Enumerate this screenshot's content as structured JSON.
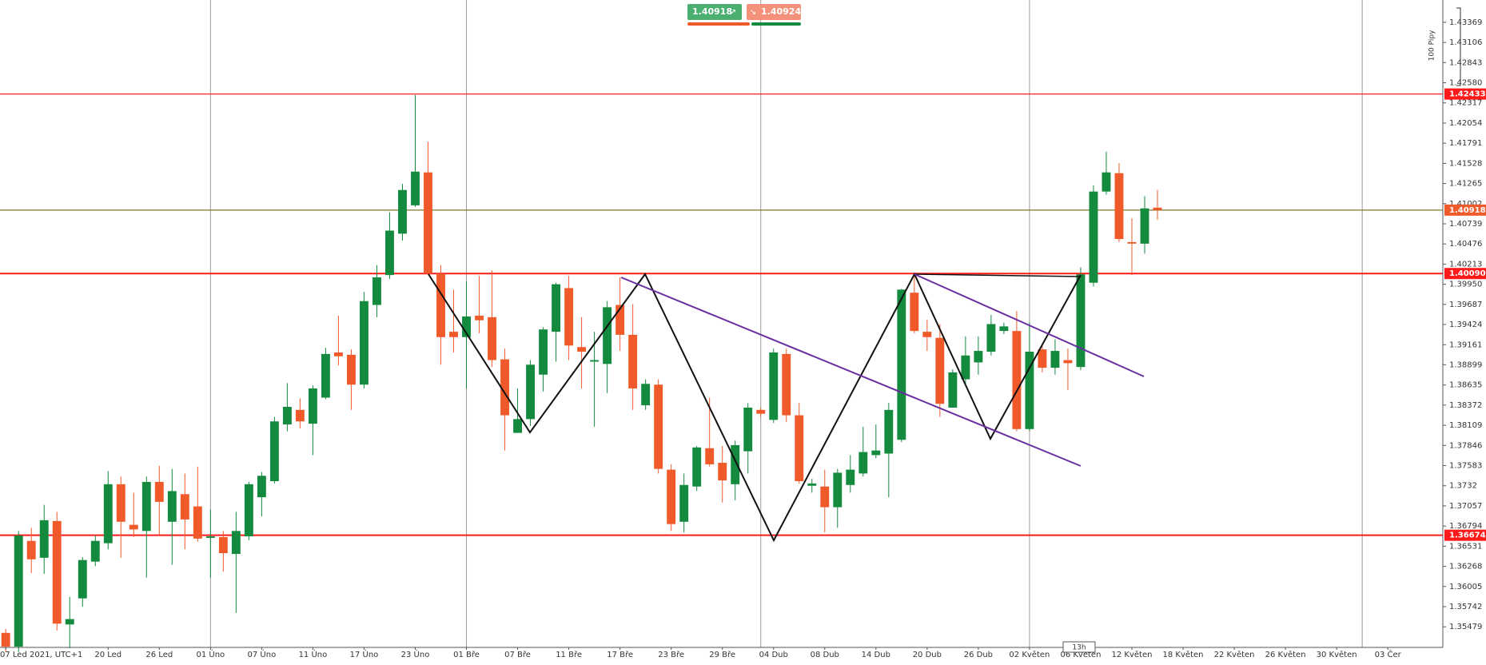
{
  "chart_data": {
    "type": "candlestick",
    "x": [
      0,
      1,
      2,
      3,
      4,
      5,
      6,
      7,
      8,
      9,
      10,
      11,
      12,
      13,
      14,
      15,
      16,
      17,
      18,
      19,
      20,
      21,
      22,
      23,
      24,
      25,
      26,
      27,
      28,
      29,
      30,
      31,
      32,
      33,
      34,
      35,
      36,
      37,
      38,
      39,
      40,
      41,
      42,
      43,
      44,
      45,
      46,
      47,
      48,
      49,
      50,
      51,
      52,
      53,
      54,
      55,
      56,
      57,
      58,
      59,
      60,
      61,
      62,
      63,
      64,
      65,
      66,
      67,
      68,
      69,
      70,
      71,
      72,
      73,
      74,
      75,
      76,
      77,
      78,
      79,
      80,
      81,
      82,
      83,
      84,
      85,
      86,
      87,
      88,
      89,
      90
    ],
    "open": [
      1.354,
      1.3522,
      1.366,
      1.3638,
      1.3686,
      1.3551,
      1.3585,
      1.3633,
      1.3657,
      1.3734,
      1.3681,
      1.3673,
      1.3737,
      1.3685,
      1.3721,
      1.3705,
      1.3664,
      1.3665,
      1.3643,
      1.3666,
      1.3717,
      1.3738,
      1.3812,
      1.3831,
      1.3813,
      1.3847,
      1.3906,
      1.3903,
      1.3864,
      1.3968,
      1.4007,
      1.4061,
      1.4098,
      1.4141,
      1.4009,
      1.3933,
      1.3926,
      1.3954,
      1.3952,
      1.3897,
      1.3801,
      1.3819,
      1.3877,
      1.3933,
      1.399,
      1.3913,
      1.3894,
      1.3891,
      1.3968,
      1.3929,
      1.3837,
      1.3864,
      1.3753,
      1.3685,
      1.3731,
      1.3781,
      1.3762,
      1.3734,
      1.3777,
      1.3831,
      1.3818,
      1.3904,
      1.3824,
      1.3732,
      1.3731,
      1.3704,
      1.3733,
      1.3748,
      1.3772,
      1.3774,
      1.3792,
      1.3984,
      1.3933,
      1.3925,
      1.3834,
      1.3871,
      1.3893,
      1.3907,
      1.3934,
      1.3934,
      1.3806,
      1.391,
      1.3886,
      1.3896,
      1.3887,
      1.3997,
      1.4116,
      1.414,
      1.405,
      1.4048,
      1.4095
    ],
    "high": [
      1.3545,
      1.3673,
      1.3677,
      1.3707,
      1.3698,
      1.3587,
      1.3639,
      1.3667,
      1.3751,
      1.3744,
      1.3723,
      1.3744,
      1.3758,
      1.3754,
      1.3748,
      1.3757,
      1.3701,
      1.3673,
      1.3698,
      1.3737,
      1.375,
      1.3822,
      1.3866,
      1.3846,
      1.3863,
      1.3912,
      1.3954,
      1.391,
      1.3985,
      1.402,
      1.4089,
      1.4126,
      1.4242,
      1.4181,
      1.402,
      1.3988,
      1.3999,
      1.4006,
      1.4013,
      1.3911,
      1.3859,
      1.3896,
      1.3939,
      1.3997,
      1.4006,
      1.3952,
      1.3933,
      1.3973,
      1.4004,
      1.3969,
      1.3871,
      1.3871,
      1.376,
      1.3748,
      1.3784,
      1.3847,
      1.3784,
      1.3791,
      1.384,
      1.3834,
      1.3911,
      1.3911,
      1.384,
      1.3741,
      1.3753,
      1.3754,
      1.3772,
      1.3809,
      1.3812,
      1.384,
      1.3989,
      1.4009,
      1.3949,
      1.3943,
      1.3884,
      1.3927,
      1.3927,
      1.3955,
      1.3945,
      1.396,
      1.3945,
      1.3918,
      1.3923,
      1.3911,
      1.4017,
      1.4124,
      1.4168,
      1.4153,
      1.4081,
      1.411,
      1.4118
    ],
    "low": [
      1.3515,
      1.3515,
      1.3618,
      1.3617,
      1.3543,
      1.352,
      1.3574,
      1.3627,
      1.3649,
      1.3638,
      1.3665,
      1.3612,
      1.3668,
      1.3629,
      1.3649,
      1.3659,
      1.3612,
      1.362,
      1.3566,
      1.3661,
      1.3692,
      1.3735,
      1.3803,
      1.3807,
      1.3772,
      1.3845,
      1.3889,
      1.3831,
      1.3859,
      1.3952,
      1.4002,
      1.4052,
      1.4096,
      1.4007,
      1.389,
      1.3906,
      1.3859,
      1.3931,
      1.3887,
      1.3778,
      1.3801,
      1.381,
      1.3855,
      1.3894,
      1.3896,
      1.3859,
      1.3809,
      1.3853,
      1.3908,
      1.3831,
      1.3831,
      1.3748,
      1.3673,
      1.3671,
      1.3725,
      1.3757,
      1.371,
      1.3713,
      1.3748,
      1.3822,
      1.3814,
      1.3815,
      1.3735,
      1.3723,
      1.3671,
      1.3677,
      1.3723,
      1.3744,
      1.3768,
      1.3717,
      1.3789,
      1.3931,
      1.3908,
      1.3822,
      1.3834,
      1.3865,
      1.3877,
      1.3902,
      1.393,
      1.3803,
      1.3803,
      1.388,
      1.3877,
      1.3857,
      1.3883,
      1.3992,
      1.4112,
      1.405,
      1.4007,
      1.4035,
      1.4079
    ],
    "close": [
      1.3522,
      1.3667,
      1.3636,
      1.3687,
      1.3552,
      1.3558,
      1.3635,
      1.366,
      1.3734,
      1.3685,
      1.3675,
      1.3737,
      1.3711,
      1.3725,
      1.3688,
      1.3663,
      1.3666,
      1.3644,
      1.3673,
      1.3734,
      1.3745,
      1.3816,
      1.3835,
      1.3816,
      1.3859,
      1.3904,
      1.3901,
      1.3864,
      1.3973,
      1.4004,
      1.4065,
      1.4118,
      1.4142,
      1.4009,
      1.3926,
      1.3926,
      1.3953,
      1.3948,
      1.3896,
      1.3824,
      1.3819,
      1.389,
      1.3936,
      1.3995,
      1.3915,
      1.3907,
      1.3896,
      1.3965,
      1.3929,
      1.3859,
      1.3865,
      1.3754,
      1.3682,
      1.3733,
      1.3782,
      1.376,
      1.3739,
      1.3785,
      1.3834,
      1.3826,
      1.3906,
      1.3824,
      1.3738,
      1.3735,
      1.3704,
      1.3749,
      1.3753,
      1.3776,
      1.3778,
      1.3831,
      1.3988,
      1.3934,
      1.3926,
      1.3839,
      1.388,
      1.3902,
      1.3908,
      1.3943,
      1.394,
      1.3806,
      1.3907,
      1.3886,
      1.3908,
      1.3892,
      1.4008,
      1.4116,
      1.4141,
      1.4054,
      1.4048,
      1.4094,
      1.40918
    ],
    "up_color": "#138a3e",
    "down_color": "#f05a2a",
    "xlim": [
      -0.45,
      112.3
    ],
    "ylim": [
      1.3521,
      1.4366
    ],
    "xticks": [
      {
        "value": 0,
        "label": "07 Led 2021, UTC+1"
      },
      {
        "value": 8,
        "label": "20 Led"
      },
      {
        "value": 12,
        "label": "26 Led"
      },
      {
        "value": 16,
        "label": "01 Úno"
      },
      {
        "value": 20,
        "label": "07 Úno"
      },
      {
        "value": 24,
        "label": "11 Úno"
      },
      {
        "value": 28,
        "label": "17 Úno"
      },
      {
        "value": 32,
        "label": "23 Úno"
      },
      {
        "value": 36,
        "label": "01 Bře"
      },
      {
        "value": 40,
        "label": "07 Bře"
      },
      {
        "value": 44,
        "label": "11 Bře"
      },
      {
        "value": 48,
        "label": "17 Bře"
      },
      {
        "value": 52,
        "label": "23 Bře"
      },
      {
        "value": 56,
        "label": "29 Bře"
      },
      {
        "value": 60,
        "label": "04 Dub"
      },
      {
        "value": 64,
        "label": "08 Dub"
      },
      {
        "value": 68,
        "label": "14 Dub"
      },
      {
        "value": 72,
        "label": "20 Dub"
      },
      {
        "value": 76,
        "label": "26 Dub"
      },
      {
        "value": 80,
        "label": "02 Květen"
      },
      {
        "value": 84,
        "label": "06 Květen"
      },
      {
        "value": 88,
        "label": "12 Květen"
      },
      {
        "value": 92,
        "label": "18 Květen"
      },
      {
        "value": 96,
        "label": "22 Květen"
      },
      {
        "value": 100,
        "label": "26 Květen"
      },
      {
        "value": 104,
        "label": "30 Květen"
      },
      {
        "value": 108,
        "label": "03 Čer"
      }
    ],
    "yticks": [
      1.43369,
      1.43106,
      1.42843,
      {
        "value": 1.4258,
        "label": "1.42580"
      },
      1.42317,
      1.42054,
      1.41791,
      1.41528,
      1.41265,
      1.41002,
      1.40739,
      1.40476,
      1.40213,
      {
        "value": 1.3995,
        "label": "1.39950"
      },
      1.39687,
      1.39424,
      1.39161,
      1.38899,
      1.38635,
      1.38372,
      1.38109,
      1.37846,
      1.37583,
      1.3732,
      1.37057,
      1.36794,
      1.36531,
      1.36268,
      1.36005,
      1.35742,
      1.35479
    ],
    "vgrid": [
      16,
      36,
      59,
      80,
      106
    ],
    "levels": [
      1.42433,
      {
        "value": 1.4009,
        "label": "1.40090"
      },
      1.36674
    ],
    "level_color": "#ff1a1a",
    "last_price": 1.40918,
    "last_color": "#f05a2a",
    "last_line_color": "#7d7a2a"
  },
  "quote": {
    "bid": "1.40918",
    "ask": "1.40924"
  },
  "scale_note": "100 Pipy",
  "timeframe_tag": "13h"
}
